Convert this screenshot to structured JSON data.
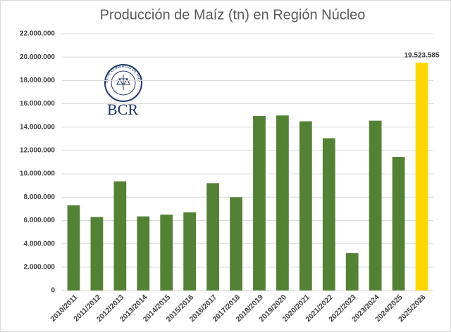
{
  "chart_data": {
    "type": "bar",
    "title": "Producción de Maíz (tn) en Región Núcleo",
    "logo_text": "BCR",
    "seal_text": "BOLSA DE COMERCIO DE ROSARIO",
    "categories": [
      "2010/2011",
      "2011/2012",
      "2012/2013",
      "2013/2014",
      "2014/2015",
      "2015/2016",
      "2016/2017",
      "2017/2018",
      "2018/2019",
      "2019/2020",
      "2020/2021",
      "2021/2022",
      "2022/2023",
      "2023/2024",
      "2024/2025",
      "2025/2026"
    ],
    "values": [
      7300000,
      6300000,
      9350000,
      6350000,
      6500000,
      6700000,
      9200000,
      8000000,
      14950000,
      15000000,
      14500000,
      13050000,
      3200000,
      14550000,
      11450000,
      19523585
    ],
    "value_labels": [
      null,
      null,
      null,
      null,
      null,
      null,
      null,
      null,
      null,
      null,
      null,
      null,
      null,
      null,
      null,
      "19.523.585"
    ],
    "colors": [
      "#548235",
      "#548235",
      "#548235",
      "#548235",
      "#548235",
      "#548235",
      "#548235",
      "#548235",
      "#548235",
      "#548235",
      "#548235",
      "#548235",
      "#548235",
      "#548235",
      "#548235",
      "#ffd700"
    ],
    "ylim": [
      0,
      22000000
    ],
    "yticks": [
      0,
      {
        "value": 2000000,
        "label": "2.000.000"
      },
      {
        "value": 4000000,
        "label": "4.000.000"
      },
      {
        "value": 6000000,
        "label": "6.000.000"
      },
      {
        "value": 8000000,
        "label": "8.000.000"
      },
      {
        "value": 10000000,
        "label": "10.000.000"
      },
      {
        "value": 12000000,
        "label": "12.000.000"
      },
      {
        "value": 14000000,
        "label": "14.000.000"
      },
      {
        "value": 16000000,
        "label": "16.000.000"
      },
      {
        "value": 18000000,
        "label": "18.000.000"
      },
      {
        "value": 20000000,
        "label": "20.000.000"
      },
      {
        "value": 22000000,
        "label": "22.000.000"
      }
    ],
    "grid": true
  }
}
